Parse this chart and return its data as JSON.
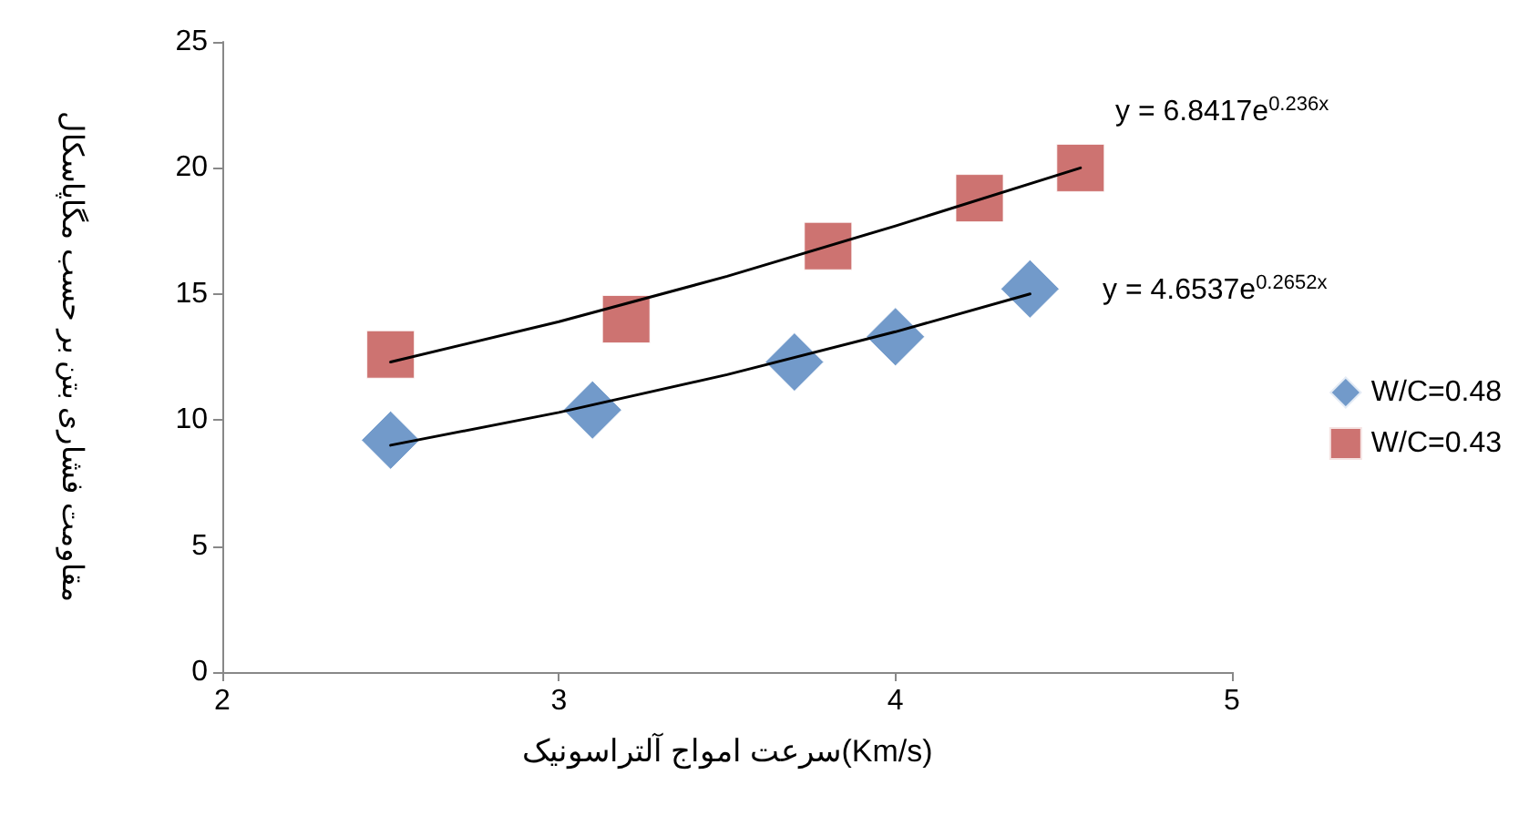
{
  "chart_data": {
    "type": "scatter",
    "xlabel": "سرعت امواج آلتراسونیک(Km/s)",
    "ylabel": "مقاومت فشاری بتن بر حسب مگاپاسکال",
    "xlim": [
      2,
      5
    ],
    "xticks": [
      2,
      3,
      4,
      5
    ],
    "ylim": [
      0,
      25
    ],
    "yticks": [
      0,
      5,
      10,
      15,
      20,
      25
    ],
    "grid": false,
    "legend": "right",
    "series": [
      {
        "name": "W/C=0.48",
        "color": "#4f81bd",
        "marker": "diamond",
        "x": [
          2.5,
          3.1,
          3.7,
          4.0,
          4.4
        ],
        "values": [
          9.2,
          10.4,
          12.3,
          13.3,
          15.2
        ]
      },
      {
        "name": "W/C=0.43",
        "color": "#c0504d",
        "marker": "square",
        "x": [
          2.5,
          3.2,
          3.8,
          4.25,
          4.55
        ],
        "values": [
          12.6,
          14.0,
          16.9,
          18.8,
          20.0
        ]
      },
      {
        "type": "line",
        "color": "#000000",
        "marker": "none",
        "x": [
          2.5,
          3,
          3.5,
          4,
          4.4
        ],
        "values": [
          9.0,
          10.3,
          11.8,
          13.5,
          15.0
        ]
      },
      {
        "type": "line",
        "color": "#000000",
        "marker": "none",
        "x": [
          2.5,
          3,
          3.5,
          4,
          4.55
        ],
        "values": [
          12.3,
          13.9,
          15.7,
          17.7,
          20.0
        ]
      }
    ],
    "annotations": [
      "y = 6.8417e$^{0.236x}$",
      "y = 4.6537e$^{0.2652x}$"
    ]
  }
}
